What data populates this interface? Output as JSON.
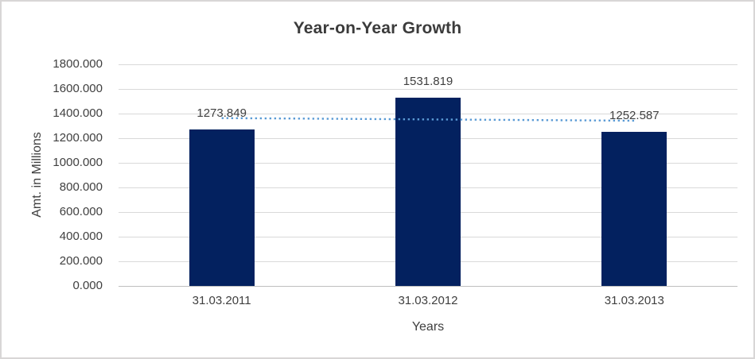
{
  "title": "Year-on-Year Growth",
  "chart_data": {
    "type": "bar",
    "title": "Year-on-Year Growth",
    "xlabel": "Years",
    "ylabel": "Amt. in Millions",
    "categories": [
      "31.03.2011",
      "31.03.2012",
      "31.03.2013"
    ],
    "values": [
      1273.849,
      1531.819,
      1252.587
    ],
    "data_labels": [
      "1273.849",
      "1531.819",
      "1252.587"
    ],
    "ylim": [
      0,
      1800
    ],
    "ytick_step": 200,
    "ytick_labels": [
      "1800.000",
      "1600.000",
      "1400.000",
      "1200.000",
      "1000.000",
      "800.000",
      "600.000",
      "400.000",
      "200.000",
      "0.000"
    ],
    "grid": true,
    "legend": "none",
    "bar_color": "#03215f",
    "gridline_color": "#d9d9d9",
    "axis_line_color": "#bfbfbf",
    "text_color": "#3f3f3f",
    "trendline": {
      "kind": "linear",
      "style": "dotted",
      "color": "#5b9bd5",
      "start_value": 1363.4,
      "end_value": 1342.1
    }
  }
}
